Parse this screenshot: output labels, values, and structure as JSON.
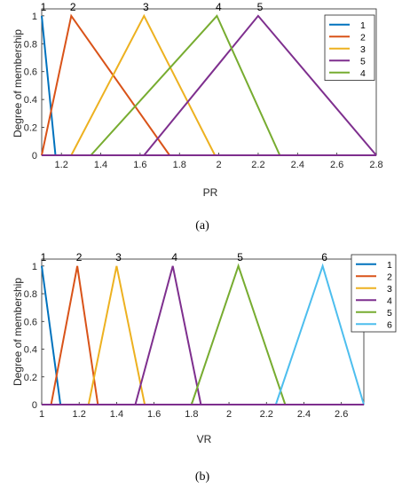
{
  "chart_data": [
    {
      "type": "line",
      "caption": "(a)",
      "xlabel": "PR",
      "ylabel": "Degree of membership",
      "xlim": [
        1.1,
        2.8
      ],
      "ylim": [
        0,
        1.05
      ],
      "xticks": [
        "1.2",
        "1.4",
        "1.6",
        "1.8",
        "2",
        "2.2",
        "2.4",
        "2.6",
        "2.8"
      ],
      "yticks": [
        "0",
        "0.2",
        "0.4",
        "0.6",
        "0.8",
        "1"
      ],
      "legend_position": "top-right",
      "legend_entries": [
        "1",
        "2",
        "3",
        "5",
        "4"
      ],
      "series": [
        {
          "name": "1",
          "color": "#0072BD",
          "points": [
            [
              1.1,
              1.0
            ],
            [
              1.17,
              0.0
            ]
          ],
          "peak_label": "1",
          "peak_x": 1.1
        },
        {
          "name": "2",
          "color": "#D95319",
          "points": [
            [
              1.1,
              0.0
            ],
            [
              1.25,
              1.0
            ],
            [
              1.75,
              0.0
            ]
          ],
          "peak_label": "2",
          "peak_x": 1.25
        },
        {
          "name": "3",
          "color": "#EDB120",
          "points": [
            [
              1.25,
              0.0
            ],
            [
              1.62,
              1.0
            ],
            [
              1.98,
              0.0
            ]
          ],
          "peak_label": "3",
          "peak_x": 1.62
        },
        {
          "name": "5",
          "color": "#7E2F8E",
          "points": [
            [
              1.62,
              0.0
            ],
            [
              2.2,
              1.0
            ],
            [
              2.8,
              0.0
            ]
          ],
          "peak_label": "5",
          "peak_x": 2.2
        },
        {
          "name": "4",
          "color": "#77AC30",
          "points": [
            [
              1.35,
              0.0
            ],
            [
              1.99,
              1.0
            ],
            [
              2.31,
              0.0
            ]
          ],
          "peak_label": "4",
          "peak_x": 1.99
        }
      ]
    },
    {
      "type": "line",
      "caption": "(b)",
      "xlabel": "VR",
      "ylabel": "Degree of membership",
      "xlim": [
        1.0,
        2.72
      ],
      "ylim": [
        0,
        1.05
      ],
      "xticks": [
        "1",
        "1.2",
        "1.4",
        "1.6",
        "1.8",
        "2",
        "2.2",
        "2.4",
        "2.6"
      ],
      "yticks": [
        "0",
        "0.2",
        "0.4",
        "0.6",
        "0.8",
        "1"
      ],
      "legend_position": "top-right",
      "legend_entries": [
        "1",
        "2",
        "3",
        "4",
        "5",
        "6"
      ],
      "series": [
        {
          "name": "1",
          "color": "#0072BD",
          "points": [
            [
              1.0,
              1.0
            ],
            [
              1.1,
              0.0
            ]
          ],
          "peak_label": "1",
          "peak_x": 1.0
        },
        {
          "name": "2",
          "color": "#D95319",
          "points": [
            [
              1.05,
              0.0
            ],
            [
              1.19,
              1.0
            ],
            [
              1.3,
              0.0
            ]
          ],
          "peak_label": "2",
          "peak_x": 1.19
        },
        {
          "name": "3",
          "color": "#EDB120",
          "points": [
            [
              1.25,
              0.0
            ],
            [
              1.4,
              1.0
            ],
            [
              1.55,
              0.0
            ]
          ],
          "peak_label": "3",
          "peak_x": 1.4
        },
        {
          "name": "4",
          "color": "#7E2F8E",
          "points": [
            [
              1.5,
              0.0
            ],
            [
              1.7,
              1.0
            ],
            [
              1.85,
              0.0
            ]
          ],
          "peak_label": "4",
          "peak_x": 1.7
        },
        {
          "name": "5",
          "color": "#77AC30",
          "points": [
            [
              1.8,
              0.0
            ],
            [
              2.05,
              1.0
            ],
            [
              2.3,
              0.0
            ]
          ],
          "peak_label": "5",
          "peak_x": 2.05
        },
        {
          "name": "6",
          "color": "#4DBEEE",
          "points": [
            [
              2.25,
              0.0
            ],
            [
              2.5,
              1.0
            ],
            [
              2.72,
              0.0
            ]
          ],
          "peak_label": "6",
          "peak_x": 2.5
        }
      ]
    }
  ]
}
